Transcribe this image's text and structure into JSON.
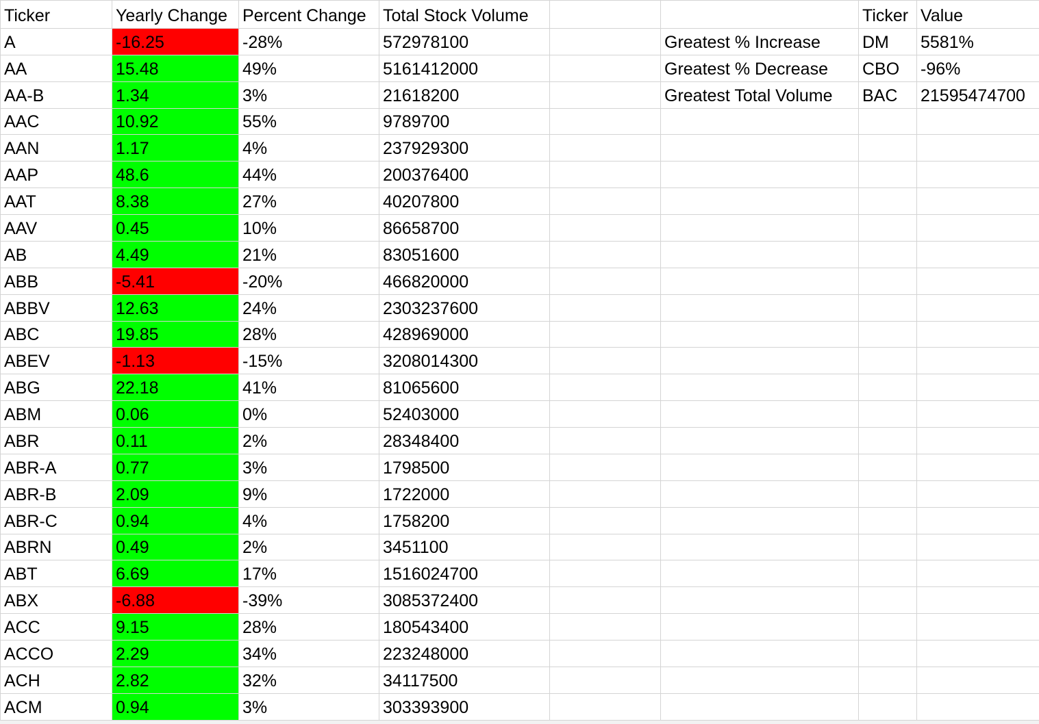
{
  "headers": {
    "ticker": "Ticker",
    "yearly_change": "Yearly Change",
    "percent_change": "Percent Change",
    "total_stock_volume": "Total Stock Volume"
  },
  "summary": {
    "header_ticker": "Ticker",
    "header_value": "Value",
    "rows": [
      {
        "label": "Greatest % Increase",
        "ticker": "DM",
        "value": "5581%"
      },
      {
        "label": "Greatest % Decrease",
        "ticker": "CBO",
        "value": "-96%"
      },
      {
        "label": "Greatest Total Volume",
        "ticker": "BAC",
        "value": "21595474700"
      }
    ]
  },
  "colors": {
    "positive": "#00ff00",
    "negative": "#ff0000",
    "gridline": "#d4d4d4"
  },
  "rows": [
    {
      "ticker": "A",
      "change": "-16.25",
      "pct": "-28%",
      "volume": "572978100",
      "sign": "neg"
    },
    {
      "ticker": "AA",
      "change": "15.48",
      "pct": "49%",
      "volume": "5161412000",
      "sign": "pos"
    },
    {
      "ticker": "AA-B",
      "change": "1.34",
      "pct": "3%",
      "volume": "21618200",
      "sign": "pos"
    },
    {
      "ticker": "AAC",
      "change": "10.92",
      "pct": "55%",
      "volume": "9789700",
      "sign": "pos"
    },
    {
      "ticker": "AAN",
      "change": "1.17",
      "pct": "4%",
      "volume": "237929300",
      "sign": "pos"
    },
    {
      "ticker": "AAP",
      "change": "48.6",
      "pct": "44%",
      "volume": "200376400",
      "sign": "pos"
    },
    {
      "ticker": "AAT",
      "change": "8.38",
      "pct": "27%",
      "volume": "40207800",
      "sign": "pos"
    },
    {
      "ticker": "AAV",
      "change": "0.45",
      "pct": "10%",
      "volume": "86658700",
      "sign": "pos"
    },
    {
      "ticker": "AB",
      "change": "4.49",
      "pct": "21%",
      "volume": "83051600",
      "sign": "pos"
    },
    {
      "ticker": "ABB",
      "change": "-5.41",
      "pct": "-20%",
      "volume": "466820000",
      "sign": "neg"
    },
    {
      "ticker": "ABBV",
      "change": "12.63",
      "pct": "24%",
      "volume": "2303237600",
      "sign": "pos"
    },
    {
      "ticker": "ABC",
      "change": "19.85",
      "pct": "28%",
      "volume": "428969000",
      "sign": "pos"
    },
    {
      "ticker": "ABEV",
      "change": "-1.13",
      "pct": "-15%",
      "volume": "3208014300",
      "sign": "neg"
    },
    {
      "ticker": "ABG",
      "change": "22.18",
      "pct": "41%",
      "volume": "81065600",
      "sign": "pos"
    },
    {
      "ticker": "ABM",
      "change": "0.06",
      "pct": "0%",
      "volume": "52403000",
      "sign": "pos"
    },
    {
      "ticker": "ABR",
      "change": "0.11",
      "pct": "2%",
      "volume": "28348400",
      "sign": "pos"
    },
    {
      "ticker": "ABR-A",
      "change": "0.77",
      "pct": "3%",
      "volume": "1798500",
      "sign": "pos"
    },
    {
      "ticker": "ABR-B",
      "change": "2.09",
      "pct": "9%",
      "volume": "1722000",
      "sign": "pos"
    },
    {
      "ticker": "ABR-C",
      "change": "0.94",
      "pct": "4%",
      "volume": "1758200",
      "sign": "pos"
    },
    {
      "ticker": "ABRN",
      "change": "0.49",
      "pct": "2%",
      "volume": "3451100",
      "sign": "pos"
    },
    {
      "ticker": "ABT",
      "change": "6.69",
      "pct": "17%",
      "volume": "1516024700",
      "sign": "pos"
    },
    {
      "ticker": "ABX",
      "change": "-6.88",
      "pct": "-39%",
      "volume": "3085372400",
      "sign": "neg"
    },
    {
      "ticker": "ACC",
      "change": "9.15",
      "pct": "28%",
      "volume": "180543400",
      "sign": "pos"
    },
    {
      "ticker": "ACCO",
      "change": "2.29",
      "pct": "34%",
      "volume": "223248000",
      "sign": "pos"
    },
    {
      "ticker": "ACH",
      "change": "2.82",
      "pct": "32%",
      "volume": "34117500",
      "sign": "pos"
    },
    {
      "ticker": "ACM",
      "change": "0.94",
      "pct": "3%",
      "volume": "303393900",
      "sign": "pos"
    }
  ]
}
